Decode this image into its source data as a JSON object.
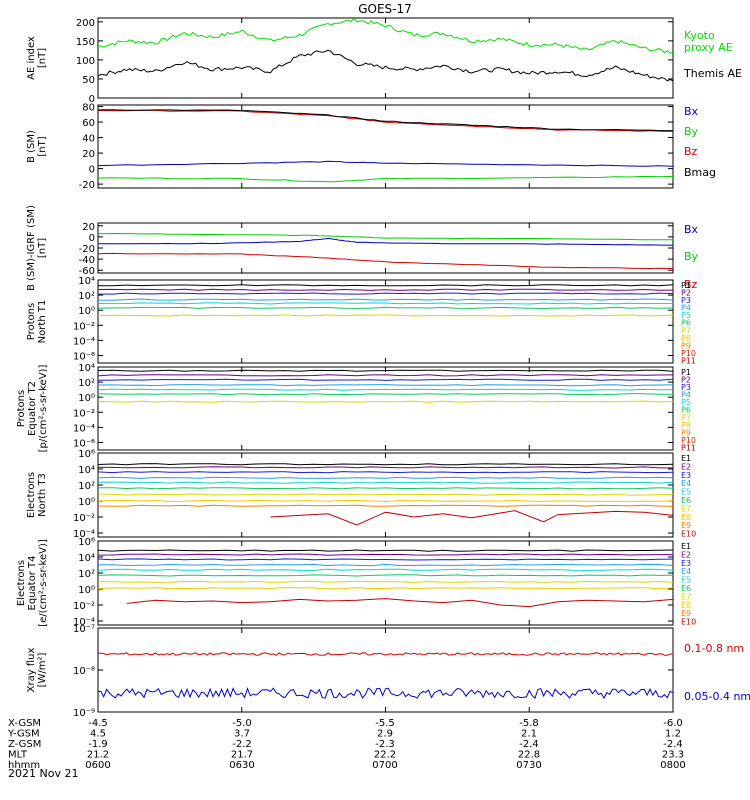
{
  "page_title": "GOES-17",
  "date_label": "2021 Nov 21",
  "x_axis": {
    "ticks": [
      "0600",
      "0630",
      "0700",
      "0730",
      "0800"
    ],
    "rows": [
      {
        "label": "X-GSM",
        "values": [
          "-4.5",
          "-5.0",
          "-5.5",
          "-5.8",
          "-6.0"
        ]
      },
      {
        "label": "Y-GSM",
        "values": [
          "4.5",
          "3.7",
          "2.9",
          "2.1",
          "1.2"
        ]
      },
      {
        "label": "Z-GSM",
        "values": [
          "-1.9",
          "-2.2",
          "-2.3",
          "-2.4",
          "-2.4"
        ]
      },
      {
        "label": "MLT",
        "values": [
          "21.2",
          "21.7",
          "22.2",
          "22.8",
          "23.3"
        ]
      },
      {
        "label": "hhmm",
        "values": [
          "0600",
          "0630",
          "0700",
          "0730",
          "0800"
        ]
      }
    ]
  },
  "colors": {
    "P1": "#000000",
    "P2": "#6a0080",
    "P3": "#1a1ad6",
    "P4": "#1ea0e6",
    "P5": "#10d2d2",
    "P6": "#10c860",
    "P7": "#d8d800",
    "P8": "#f0c800",
    "P9": "#f08000",
    "P10": "#d02000",
    "P11": "#c00000"
  },
  "chart_data": [
    {
      "type": "line",
      "ylabel": [
        "AE index",
        "[nT]"
      ],
      "yticks": [
        "200",
        "150",
        "100",
        "50",
        "0"
      ],
      "ylim": [
        0,
        210
      ],
      "x_range_hours": [
        6.0,
        8.0
      ],
      "series": [
        {
          "name": "Kyoto proxy AE",
          "name_lines": [
            "Kyoto",
            "proxy AE"
          ],
          "color": "#00e000",
          "x": [
            6.0,
            6.1,
            6.2,
            6.3,
            6.4,
            6.5,
            6.6,
            6.7,
            6.8,
            6.9,
            7.0,
            7.1,
            7.2,
            7.3,
            7.4,
            7.5,
            7.6,
            7.7,
            7.8,
            7.9,
            8.0
          ],
          "y": [
            135,
            150,
            145,
            170,
            160,
            175,
            150,
            165,
            195,
            205,
            190,
            165,
            170,
            150,
            155,
            140,
            140,
            125,
            150,
            130,
            120
          ]
        },
        {
          "name": "Themis AE",
          "name_lines": [
            "Themis AE"
          ],
          "color": "#000000",
          "x": [
            6.0,
            6.1,
            6.2,
            6.3,
            6.4,
            6.5,
            6.6,
            6.7,
            6.8,
            6.9,
            7.0,
            7.1,
            7.2,
            7.3,
            7.4,
            7.5,
            7.6,
            7.7,
            7.8,
            7.9,
            8.0
          ],
          "y": [
            60,
            75,
            70,
            95,
            75,
            80,
            70,
            110,
            125,
            90,
            80,
            75,
            85,
            70,
            75,
            65,
            70,
            60,
            80,
            60,
            45
          ]
        }
      ]
    },
    {
      "type": "line",
      "ylabel": [
        "B (SM)",
        "[nT]"
      ],
      "yticks": [
        "80",
        "60",
        "40",
        "20",
        "0",
        "-20"
      ],
      "ylim": [
        -25,
        82
      ],
      "x_range_hours": [
        6.0,
        8.0
      ],
      "series": [
        {
          "name": "Bx",
          "name_lines": [
            "Bx"
          ],
          "color": "#0000c0",
          "x": [
            6.0,
            6.5,
            6.8,
            7.0,
            7.5,
            8.0
          ],
          "y": [
            4,
            7,
            9,
            7,
            5,
            3
          ]
        },
        {
          "name": "By",
          "name_lines": [
            "By"
          ],
          "color": "#00d000",
          "x": [
            6.0,
            6.5,
            6.8,
            7.0,
            7.5,
            8.0
          ],
          "y": [
            -12,
            -13,
            -17,
            -13,
            -12,
            -10
          ]
        },
        {
          "name": "Bz",
          "name_lines": [
            "Bz"
          ],
          "color": "#d00000",
          "x": [
            6.0,
            6.5,
            6.8,
            7.0,
            7.3,
            7.6,
            8.0
          ],
          "y": [
            75,
            74,
            68,
            60,
            55,
            50,
            48
          ]
        },
        {
          "name": "Bmag",
          "name_lines": [
            "Bmag"
          ],
          "color": "#000000",
          "x": [
            6.0,
            6.5,
            6.8,
            7.0,
            7.3,
            7.6,
            8.0
          ],
          "y": [
            76,
            75,
            69,
            61,
            56,
            51,
            49
          ]
        }
      ]
    },
    {
      "type": "line",
      "ylabel": [
        "B (SM)-IGRF (SM)",
        "[nT]"
      ],
      "yticks": [
        "20",
        "0",
        "-20",
        "-40",
        "-60"
      ],
      "ylim": [
        -65,
        25
      ],
      "x_range_hours": [
        6.0,
        8.0
      ],
      "series": [
        {
          "name": "Bx",
          "name_lines": [
            "Bx"
          ],
          "color": "#0000c0",
          "x": [
            6.0,
            6.4,
            6.7,
            6.8,
            6.9,
            7.2,
            7.6,
            8.0
          ],
          "y": [
            -12,
            -12,
            -8,
            -3,
            -10,
            -12,
            -13,
            -15
          ]
        },
        {
          "name": "By",
          "name_lines": [
            "By"
          ],
          "color": "#00d000",
          "x": [
            6.0,
            6.5,
            6.8,
            7.0,
            7.5,
            8.0
          ],
          "y": [
            6,
            4,
            2,
            -2,
            -3,
            -5
          ]
        },
        {
          "name": "Bz",
          "name_lines": [
            "Bz"
          ],
          "color": "#d00000",
          "x": [
            6.0,
            6.5,
            6.8,
            7.0,
            7.3,
            7.6,
            8.0
          ],
          "y": [
            -30,
            -31,
            -38,
            -45,
            -50,
            -55,
            -57
          ]
        }
      ]
    },
    {
      "type": "line",
      "scale": "log",
      "ylabel": [
        "Protons",
        "North T1"
      ],
      "yticks": [
        "10⁴",
        "10²",
        "10⁰",
        "10⁻²",
        "10⁻⁴",
        "10⁻⁶"
      ],
      "ylim_exp": [
        -7,
        4
      ],
      "x_range_hours": [
        6.0,
        8.0
      ],
      "series": [
        {
          "name": "P1",
          "exp": 3.3
        },
        {
          "name": "P2",
          "exp": 2.7
        },
        {
          "name": "P3",
          "exp": 2.2
        },
        {
          "name": "P4",
          "exp": 1.4
        },
        {
          "name": "P5",
          "exp": 0.9
        },
        {
          "name": "P6",
          "exp": 0.3
        },
        {
          "name": "P7",
          "exp": -0.7
        },
        {
          "name": "P8",
          "exp": -1.4
        },
        {
          "name": "P9",
          "exp": -2.0
        },
        {
          "name": "P10",
          "exp": -2.6
        },
        {
          "name": "P11",
          "exp": -3.2
        }
      ],
      "visible_series": 7
    },
    {
      "type": "line",
      "scale": "log",
      "ylabel": [
        "Protons",
        "Equator T2",
        "[p/(cm²-s-sr-keV)]"
      ],
      "yticks": [
        "10⁴",
        "10²",
        "10⁰",
        "10⁻²",
        "10⁻⁴",
        "10⁻⁶"
      ],
      "ylim_exp": [
        -7,
        4
      ],
      "x_range_hours": [
        6.0,
        8.0
      ],
      "series": [
        {
          "name": "P1",
          "exp": 3.5
        },
        {
          "name": "P2",
          "exp": 2.9
        },
        {
          "name": "P3",
          "exp": 2.3
        },
        {
          "name": "P4",
          "exp": 1.6
        },
        {
          "name": "P5",
          "exp": 1.0
        },
        {
          "name": "P6",
          "exp": 0.4
        },
        {
          "name": "P7",
          "exp": -0.6
        },
        {
          "name": "P8",
          "exp": -1.3
        },
        {
          "name": "P9",
          "exp": -2.0
        },
        {
          "name": "P10",
          "exp": -2.6
        },
        {
          "name": "P11",
          "exp": -3.2
        }
      ],
      "visible_series": 7
    },
    {
      "type": "line",
      "scale": "log",
      "ylabel": [
        "Electrons",
        "North T3"
      ],
      "yticks": [
        "10⁶",
        "10⁴",
        "10²",
        "10⁰",
        "10⁻²",
        "10⁻⁴"
      ],
      "ylim_exp": [
        -4.5,
        6
      ],
      "x_range_hours": [
        6.0,
        8.0
      ],
      "series": [
        {
          "name": "E1",
          "exp": 4.6
        },
        {
          "name": "E2",
          "exp": 4.2
        },
        {
          "name": "E3",
          "exp": 3.6
        },
        {
          "name": "E4",
          "exp": 2.9
        },
        {
          "name": "E5",
          "exp": 2.3
        },
        {
          "name": "E6",
          "exp": 1.6
        },
        {
          "name": "E7",
          "exp": 0.8
        },
        {
          "name": "E8",
          "exp": 0.0
        },
        {
          "name": "E9",
          "exp": -0.6
        }
      ],
      "noisy": {
        "name": "E10",
        "x": [
          6.6,
          6.8,
          6.9,
          7.0,
          7.1,
          7.2,
          7.3,
          7.4,
          7.45,
          7.55,
          7.6,
          7.7,
          7.8,
          7.9,
          8.0
        ],
        "exp": [
          -2.0,
          -1.6,
          -3.0,
          -1.4,
          -2.0,
          -1.6,
          -2.1,
          -1.5,
          -1.2,
          -2.6,
          -1.7,
          -1.5,
          -1.3,
          -1.4,
          -1.8
        ]
      },
      "colors_override": [
        "#000000",
        "#6a0080",
        "#1a1ad6",
        "#1ea0e6",
        "#10d2d2",
        "#10c860",
        "#d8d800",
        "#f0c800",
        "#f08000",
        "#c00000"
      ]
    },
    {
      "type": "line",
      "scale": "log",
      "ylabel": [
        "Electrons",
        "Equator T4",
        "[e/(cm²-s-sr-keV)]"
      ],
      "yticks": [
        "10⁶",
        "10⁴",
        "10²",
        "10⁰",
        "10⁻²",
        "10⁻⁴"
      ],
      "ylim_exp": [
        -4.5,
        6
      ],
      "x_range_hours": [
        6.0,
        8.0
      ],
      "series": [
        {
          "name": "E1",
          "exp": 4.8
        },
        {
          "name": "E2",
          "exp": 4.3
        },
        {
          "name": "E3",
          "exp": 3.7
        },
        {
          "name": "E4",
          "exp": 3.0
        },
        {
          "name": "E5",
          "exp": 2.4
        },
        {
          "name": "E6",
          "exp": 1.7
        },
        {
          "name": "E7",
          "exp": 0.9
        },
        {
          "name": "E8",
          "exp": 0.1
        }
      ],
      "noisy": {
        "name": "E9",
        "x": [
          6.1,
          6.2,
          6.3,
          6.4,
          6.5,
          6.6,
          6.7,
          6.8,
          6.9,
          7.0,
          7.1,
          7.2,
          7.3,
          7.4,
          7.5,
          7.6,
          7.7,
          7.8,
          7.9,
          8.0
        ],
        "exp": [
          -1.8,
          -1.4,
          -1.6,
          -1.5,
          -1.7,
          -1.6,
          -1.3,
          -1.5,
          -1.4,
          -1.2,
          -1.5,
          -1.7,
          -1.4,
          -2.0,
          -2.2,
          -1.6,
          -1.4,
          -1.5,
          -1.6,
          -1.3
        ]
      },
      "colors_override": [
        "#000000",
        "#6a0080",
        "#1a1ad6",
        "#1ea0e6",
        "#10d2d2",
        "#10c860",
        "#d8d800",
        "#f0c800",
        "#f08000",
        "#c00000"
      ]
    },
    {
      "type": "line",
      "scale": "log",
      "ylabel": [
        "Xray flux",
        "[W/m²]"
      ],
      "yticks": [
        "10⁻⁷",
        "10⁻⁸",
        "10⁻⁹"
      ],
      "ylim_exp": [
        -9,
        -7
      ],
      "x_range_hours": [
        6.0,
        8.0
      ],
      "series": [
        {
          "name": "0.1-0.8 nm",
          "color": "#d00000",
          "exp_mean": -7.62,
          "exp_jitter": 0.03
        },
        {
          "name": "0.05-0.4 nm",
          "color": "#0000d0",
          "exp_mean": -8.55,
          "exp_jitter": 0.12
        }
      ]
    }
  ],
  "legend_sets": {
    "protons": [
      "P1",
      "P2",
      "P3",
      "P4",
      "P5",
      "P6",
      "P7",
      "P8",
      "P9",
      "P10",
      "P11"
    ],
    "electrons": [
      "E1",
      "E2",
      "E3",
      "E4",
      "E5",
      "E6",
      "E7",
      "E8",
      "E9",
      "E10"
    ]
  }
}
